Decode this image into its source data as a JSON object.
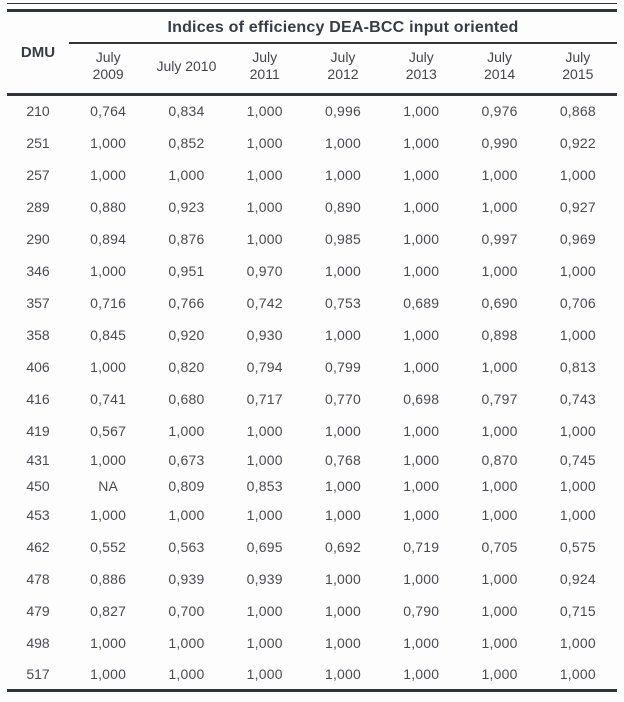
{
  "table": {
    "title": "Indices of efficiency DEA-BCC input oriented",
    "row_header": "DMU",
    "columns": [
      "July\n2009",
      "July 2010",
      "July\n2011",
      "July\n2012",
      "July\n2013",
      "July\n2014",
      "July\n2015"
    ],
    "rows": [
      {
        "dmu": "210",
        "values": [
          "0,764",
          "0,834",
          "1,000",
          "0,996",
          "1,000",
          "0,976",
          "0,868"
        ]
      },
      {
        "dmu": "251",
        "values": [
          "1,000",
          "0,852",
          "1,000",
          "1,000",
          "1,000",
          "0,990",
          "0,922"
        ]
      },
      {
        "dmu": "257",
        "values": [
          "1,000",
          "1,000",
          "1,000",
          "1,000",
          "1,000",
          "1,000",
          "1,000"
        ]
      },
      {
        "dmu": "289",
        "values": [
          "0,880",
          "0,923",
          "1,000",
          "0,890",
          "1,000",
          "1,000",
          "0,927"
        ]
      },
      {
        "dmu": "290",
        "values": [
          "0,894",
          "0,876",
          "1,000",
          "0,985",
          "1,000",
          "0,997",
          "0,969"
        ]
      },
      {
        "dmu": "346",
        "values": [
          "1,000",
          "0,951",
          "0,970",
          "1,000",
          "1,000",
          "1,000",
          "1,000"
        ]
      },
      {
        "dmu": "357",
        "values": [
          "0,716",
          "0,766",
          "0,742",
          "0,753",
          "0,689",
          "0,690",
          "0,706"
        ]
      },
      {
        "dmu": "358",
        "values": [
          "0,845",
          "0,920",
          "0,930",
          "1,000",
          "1,000",
          "0,898",
          "1,000"
        ]
      },
      {
        "dmu": "406",
        "values": [
          "1,000",
          "0,820",
          "0,794",
          "0,799",
          "1,000",
          "1,000",
          "0,813"
        ]
      },
      {
        "dmu": "416",
        "values": [
          "0,741",
          "0,680",
          "0,717",
          "0,770",
          "0,698",
          "0,797",
          "0,743"
        ]
      },
      {
        "dmu": "419",
        "values": [
          "0,567",
          "1,000",
          "1,000",
          "1,000",
          "1,000",
          "1,000",
          "1,000"
        ]
      },
      {
        "dmu": "431",
        "values": [
          "1,000",
          "0,673",
          "1,000",
          "0,768",
          "1,000",
          "0,870",
          "0,745"
        ]
      },
      {
        "dmu": "450",
        "values": [
          "NA",
          "0,809",
          "0,853",
          "1,000",
          "1,000",
          "1,000",
          "1,000"
        ]
      },
      {
        "dmu": "453",
        "values": [
          "1,000",
          "1,000",
          "1,000",
          "1,000",
          "1,000",
          "1,000",
          "1,000"
        ]
      },
      {
        "dmu": "462",
        "values": [
          "0,552",
          "0,563",
          "0,695",
          "0,692",
          "0,719",
          "0,705",
          "0,575"
        ]
      },
      {
        "dmu": "478",
        "values": [
          "0,886",
          "0,939",
          "0,939",
          "1,000",
          "1,000",
          "1,000",
          "0,924"
        ]
      },
      {
        "dmu": "479",
        "values": [
          "0,827",
          "0,700",
          "1,000",
          "1,000",
          "0,790",
          "1,000",
          "0,715"
        ]
      },
      {
        "dmu": "498",
        "values": [
          "1,000",
          "1,000",
          "1,000",
          "1,000",
          "1,000",
          "1,000",
          "1,000"
        ]
      },
      {
        "dmu": "517",
        "values": [
          "1,000",
          "1,000",
          "1,000",
          "1,000",
          "1,000",
          "1,000",
          "1,000"
        ]
      }
    ],
    "tight_spacing_dmus": [
      "431",
      "450"
    ]
  },
  "colors": {
    "text": "#4a4a52",
    "rule": "#33333a",
    "background": "#fdfdfd"
  }
}
